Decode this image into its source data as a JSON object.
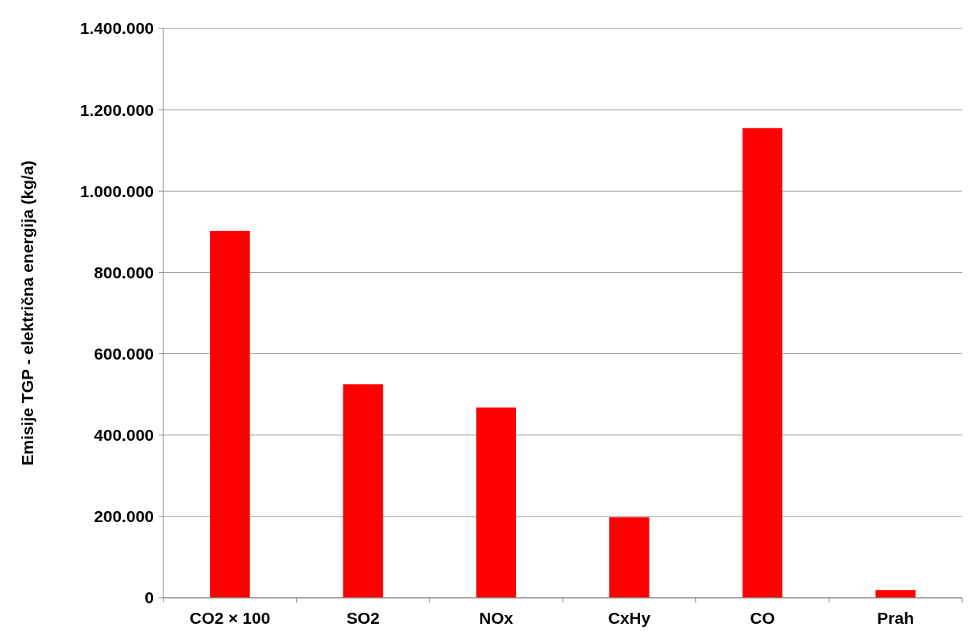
{
  "chart_data": {
    "type": "bar",
    "ylabel": "Emisije TGP - električna energija (kg/a)",
    "categories": [
      "CO2 × 100",
      "SO2",
      "NOx",
      "CxHy",
      "CO",
      "Prah"
    ],
    "values": [
      902000,
      525000,
      468000,
      198000,
      1155000,
      19000
    ],
    "color": "#ff0000",
    "ylim": [
      0,
      1400000
    ],
    "yticks": [
      0,
      {
        "value": 200000,
        "label": "200.000"
      },
      {
        "value": 400000,
        "label": "400.000"
      },
      {
        "value": 600000,
        "label": "600.000"
      },
      {
        "value": 800000,
        "label": "800.000"
      },
      {
        "value": 1000000,
        "label": "1.000.000"
      },
      {
        "value": 1200000,
        "label": "1.200.000"
      },
      {
        "value": 1400000,
        "label": "1.400.000"
      }
    ],
    "grid": "y"
  }
}
